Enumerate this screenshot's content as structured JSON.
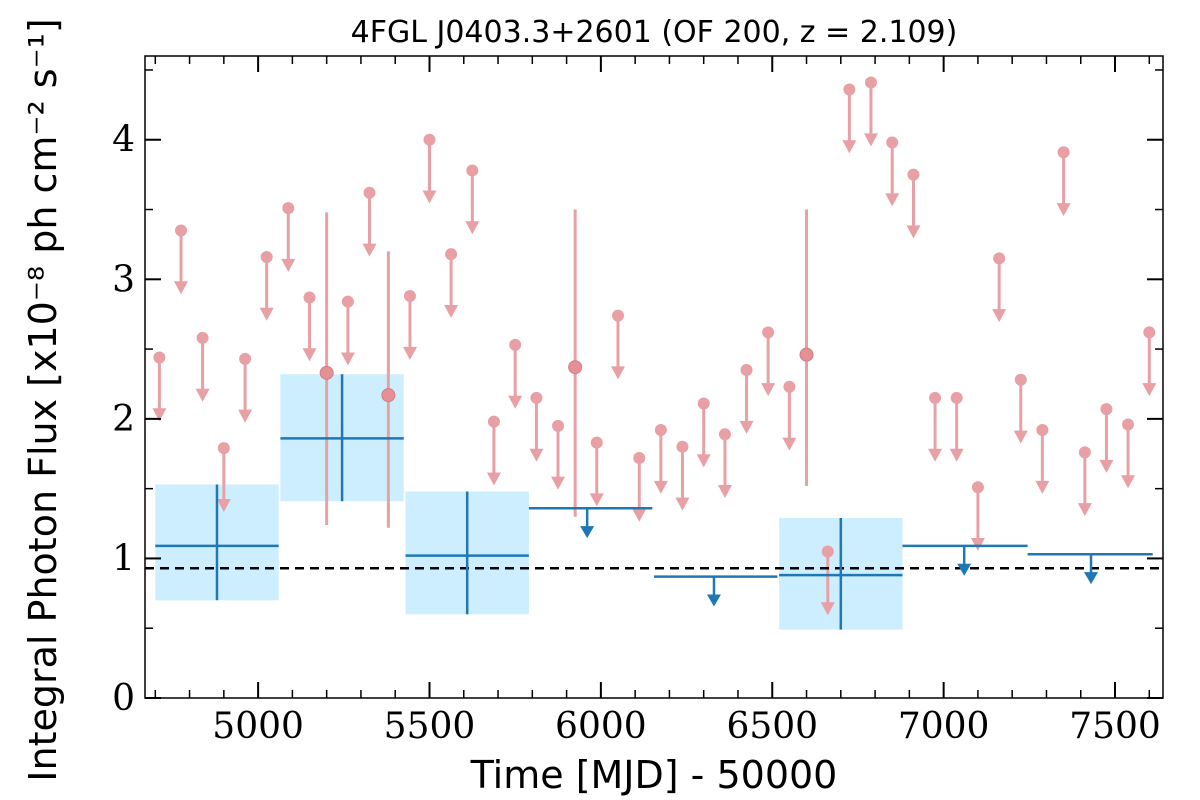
{
  "chart_data": {
    "type": "scatter",
    "title": "4FGL J0403.3+2601 (OF 200, z = 2.109)",
    "xlabel": "Time [MJD] - 50000",
    "ylabel": "Integral Photon Flux [x10⁻⁸ ph cm⁻² s⁻¹]",
    "xlim": [
      4670,
      7640
    ],
    "ylim": [
      0,
      4.6
    ],
    "x_ticks": [
      5000,
      5500,
      6000,
      6500,
      7000,
      7500
    ],
    "y_ticks": [
      0,
      1,
      2,
      3,
      4
    ],
    "reference_line_y": 0.93,
    "short_bin_color": "#e8a0a4",
    "long_bin_color": "#1f77b4",
    "band_color": "#cdeefe",
    "short_bins": {
      "detections": [
        {
          "x": 5200,
          "y": 2.33,
          "ylo": 1.24,
          "yhi": 3.48
        },
        {
          "x": 5380,
          "y": 2.17,
          "ylo": 1.22,
          "yhi": 3.2
        },
        {
          "x": 5925,
          "y": 2.37,
          "ylo": 1.3,
          "yhi": 3.5
        },
        {
          "x": 6600,
          "y": 2.46,
          "ylo": 1.52,
          "yhi": 3.5
        }
      ],
      "upper_limits": [
        {
          "x": 4712,
          "y": 2.44
        },
        {
          "x": 4775,
          "y": 3.35
        },
        {
          "x": 4838,
          "y": 2.58
        },
        {
          "x": 4900,
          "y": 1.79
        },
        {
          "x": 4962,
          "y": 2.43
        },
        {
          "x": 5025,
          "y": 3.16
        },
        {
          "x": 5088,
          "y": 3.51
        },
        {
          "x": 5150,
          "y": 2.87
        },
        {
          "x": 5262,
          "y": 2.84
        },
        {
          "x": 5325,
          "y": 3.62
        },
        {
          "x": 5443,
          "y": 2.88
        },
        {
          "x": 5500,
          "y": 4.0
        },
        {
          "x": 5563,
          "y": 3.18
        },
        {
          "x": 5625,
          "y": 3.78
        },
        {
          "x": 5688,
          "y": 1.98
        },
        {
          "x": 5750,
          "y": 2.53
        },
        {
          "x": 5812,
          "y": 2.15
        },
        {
          "x": 5875,
          "y": 1.95
        },
        {
          "x": 5988,
          "y": 1.83
        },
        {
          "x": 6050,
          "y": 2.74
        },
        {
          "x": 6112,
          "y": 1.72
        },
        {
          "x": 6175,
          "y": 1.92
        },
        {
          "x": 6238,
          "y": 1.8
        },
        {
          "x": 6300,
          "y": 2.11
        },
        {
          "x": 6362,
          "y": 1.89
        },
        {
          "x": 6425,
          "y": 2.35
        },
        {
          "x": 6488,
          "y": 2.62
        },
        {
          "x": 6550,
          "y": 2.23
        },
        {
          "x": 6662,
          "y": 1.05
        },
        {
          "x": 6725,
          "y": 4.36
        },
        {
          "x": 6788,
          "y": 4.41
        },
        {
          "x": 6850,
          "y": 3.98
        },
        {
          "x": 6912,
          "y": 3.75
        },
        {
          "x": 6975,
          "y": 2.15
        },
        {
          "x": 7038,
          "y": 2.15
        },
        {
          "x": 7100,
          "y": 1.51
        },
        {
          "x": 7162,
          "y": 3.15
        },
        {
          "x": 7225,
          "y": 2.28
        },
        {
          "x": 7288,
          "y": 1.92
        },
        {
          "x": 7350,
          "y": 3.91
        },
        {
          "x": 7412,
          "y": 1.76
        },
        {
          "x": 7475,
          "y": 2.07
        },
        {
          "x": 7538,
          "y": 1.96
        },
        {
          "x": 7600,
          "y": 2.62
        }
      ]
    },
    "long_bins": {
      "detections": [
        {
          "x": 4880,
          "xlo": 4700,
          "xhi": 5060,
          "y": 1.09,
          "ylo": 0.7,
          "yhi": 1.53
        },
        {
          "x": 5245,
          "xlo": 5065,
          "xhi": 5425,
          "y": 1.86,
          "ylo": 1.41,
          "yhi": 2.32
        },
        {
          "x": 5610,
          "xlo": 5430,
          "xhi": 5790,
          "y": 1.02,
          "ylo": 0.6,
          "yhi": 1.48
        },
        {
          "x": 6700,
          "xlo": 6520,
          "xhi": 6880,
          "y": 0.88,
          "ylo": 0.49,
          "yhi": 1.29
        }
      ],
      "upper_limits": [
        {
          "x": 5960,
          "xlo": 5790,
          "xhi": 6150,
          "y": 1.36
        },
        {
          "x": 6330,
          "xlo": 6155,
          "xhi": 6515,
          "y": 0.87
        },
        {
          "x": 7060,
          "xlo": 6880,
          "xhi": 7245,
          "y": 1.09
        },
        {
          "x": 7430,
          "xlo": 7245,
          "xhi": 7610,
          "y": 1.03
        }
      ]
    }
  }
}
